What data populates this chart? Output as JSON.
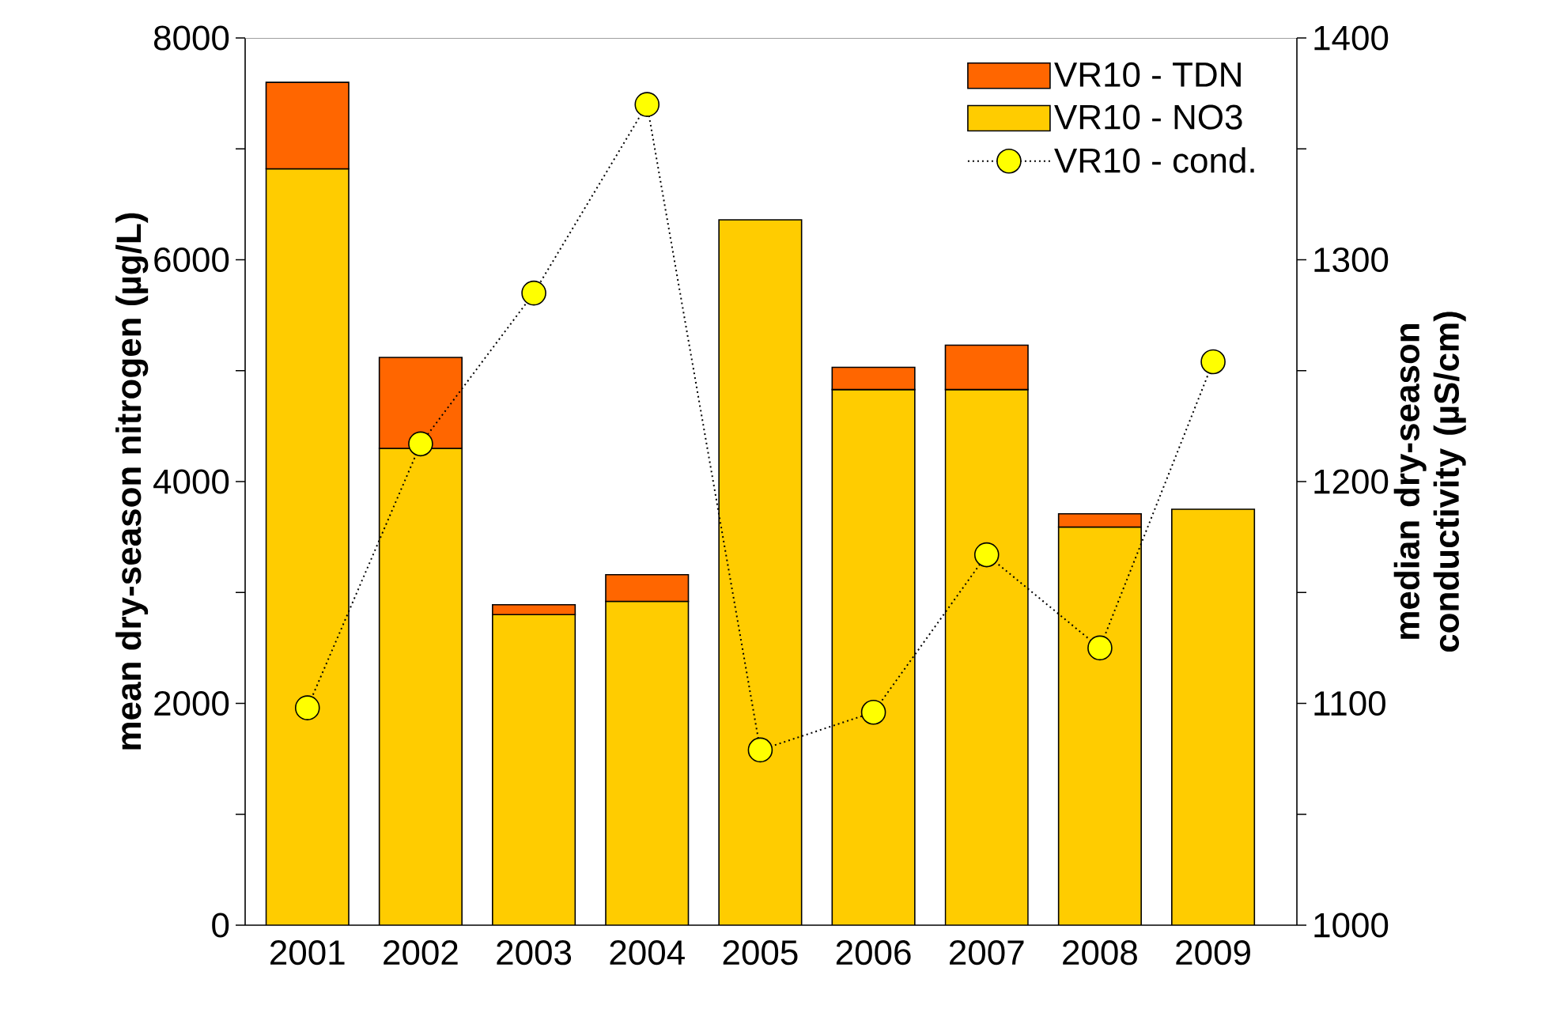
{
  "chart_data": {
    "type": "bar",
    "stacked": true,
    "categories": [
      "2001",
      "2002",
      "2003",
      "2004",
      "2005",
      "2006",
      "2007",
      "2008",
      "2009"
    ],
    "series": [
      {
        "name": "VR10 - NO3",
        "color": "#ffcc00",
        "values": [
          6820,
          4300,
          2800,
          2920,
          6360,
          4830,
          4830,
          3590,
          3750
        ]
      },
      {
        "name": "VR10 - TDN",
        "color": "#ff6600",
        "values": [
          780,
          820,
          90,
          240,
          null,
          200,
          400,
          120,
          null
        ]
      },
      {
        "name": "VR10 - cond.",
        "type": "line",
        "axis": "y2",
        "color": "#ffff00",
        "marker": "circle",
        "line_style": "dotted",
        "values": [
          1098,
          1217,
          1285,
          1370,
          1079,
          1096,
          1167,
          1125,
          1254
        ]
      }
    ],
    "ylabel": "mean dry-season nitrogen (µg/L)",
    "y2label": "median dry-season conductivity (µS/cm)",
    "ylim": [
      0,
      8000
    ],
    "yticks": [
      0,
      {
        "value": 1000,
        "label": null
      },
      2000,
      {
        "value": 3000,
        "label": null
      },
      4000,
      {
        "value": 5000,
        "label": null
      },
      6000,
      {
        "value": 7000,
        "label": null
      },
      8000
    ],
    "y2lim": [
      1000,
      1400
    ],
    "y2ticks": [
      1000,
      {
        "value": 1050,
        "label": null
      },
      1100,
      {
        "value": 1150,
        "label": null
      },
      1200,
      {
        "value": 1250,
        "label": null
      },
      1300,
      {
        "value": 1350,
        "label": null
      },
      1400
    ],
    "legend": "top right",
    "grid": false
  }
}
